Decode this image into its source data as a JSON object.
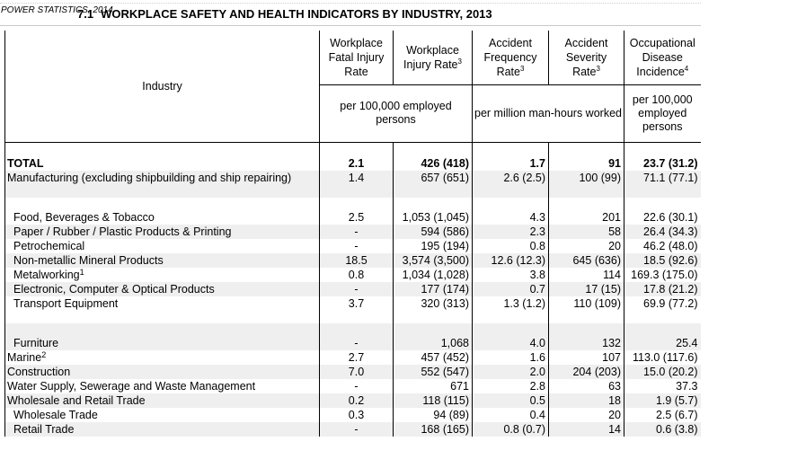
{
  "running_header": "POWER STATISTICS, 2014",
  "title": {
    "number": "7.1",
    "text": "WORKPLACE SAFETY AND HEALTH INDICATORS BY INDUSTRY, 2013"
  },
  "columns": {
    "industry": "Industry",
    "fatal": "Workplace Fatal Injury Rate",
    "injury": "Workplace Injury Rate",
    "injury_sup": "3",
    "afr": "Accident Frequency Rate",
    "afr_sup": "3",
    "asr": "Accident Severity Rate",
    "asr_sup": "3",
    "odi": "Occupational Disease Incidence",
    "odi_sup": "4"
  },
  "units": {
    "per_100k": "per 100,000 employed persons",
    "per_million": "per million man-hours worked",
    "per_100k_odi": "per 100,000 employed persons"
  },
  "rows": [
    {
      "label": "TOTAL",
      "fn": "",
      "fatal": "2.1",
      "injury": "426 (418)",
      "afr": "1.7",
      "asr": "91",
      "odi": "23.7 (31.2)"
    },
    {
      "label": "Manufacturing (excluding shipbuilding and ship repairing)",
      "fn": "",
      "fatal": "1.4",
      "injury": "657 (651)",
      "afr": "2.6 (2.5)",
      "asr": "100 (99)",
      "odi": "71.1 (77.1)"
    },
    {
      "label": "Food, Beverages & Tobacco",
      "fn": "",
      "fatal": "2.5",
      "injury": "1,053 (1,045)",
      "afr": "4.3",
      "asr": "201",
      "odi": "22.6 (30.1)"
    },
    {
      "label": "Paper / Rubber / Plastic Products & Printing",
      "fn": "",
      "fatal": "-",
      "injury": "594 (586)",
      "afr": "2.3",
      "asr": "58",
      "odi": "26.4 (34.3)"
    },
    {
      "label": "Petrochemical",
      "fn": "",
      "fatal": "-",
      "injury": "195 (194)",
      "afr": "0.8",
      "asr": "20",
      "odi": "46.2 (48.0)"
    },
    {
      "label": "Non-metallic Mineral Products",
      "fn": "",
      "fatal": "18.5",
      "injury": "3,574 (3,500)",
      "afr": "12.6 (12.3)",
      "asr": "645 (636)",
      "odi": "18.5 (92.6)"
    },
    {
      "label": "Metalworking",
      "fn": "1",
      "fatal": "0.8",
      "injury": "1,034 (1,028)",
      "afr": "3.8",
      "asr": "114",
      "odi": "169.3 (175.0)"
    },
    {
      "label": "Electronic, Computer & Optical Products",
      "fn": "",
      "fatal": "-",
      "injury": "177 (174)",
      "afr": "0.7",
      "asr": "17 (15)",
      "odi": "17.8 (21.2)"
    },
    {
      "label": "Transport Equipment",
      "fn": "",
      "fatal": "3.7",
      "injury": "320 (313)",
      "afr": "1.3 (1.2)",
      "asr": "110 (109)",
      "odi": "69.9 (77.2)"
    },
    {
      "label": "Furniture",
      "fn": "",
      "fatal": "-",
      "injury": "1,068",
      "afr": "4.0",
      "asr": "132",
      "odi": "25.4"
    },
    {
      "label": "Marine",
      "fn": "2",
      "fatal": "2.7",
      "injury": "457 (452)",
      "afr": "1.6",
      "asr": "107",
      "odi": "113.0 (117.6)"
    },
    {
      "label": "Construction",
      "fn": "",
      "fatal": "7.0",
      "injury": "552 (547)",
      "afr": "2.0",
      "asr": "204 (203)",
      "odi": "15.0 (20.2)"
    },
    {
      "label": "Water Supply, Sewerage and Waste Management",
      "fn": "",
      "fatal": "-",
      "injury": "671",
      "afr": "2.8",
      "asr": "63",
      "odi": "37.3"
    },
    {
      "label": "Wholesale and Retail Trade",
      "fn": "",
      "fatal": "0.2",
      "injury": "118 (115)",
      "afr": "0.5",
      "asr": "18",
      "odi": "1.9 (5.7)"
    },
    {
      "label": "Wholesale Trade",
      "fn": "",
      "fatal": "0.3",
      "injury": "94 (89)",
      "afr": "0.4",
      "asr": "20",
      "odi": "2.5 (6.7)"
    },
    {
      "label": "Retail Trade",
      "fn": "",
      "fatal": "-",
      "injury": "168 (165)",
      "afr": "0.8 (0.7)",
      "asr": "14",
      "odi": "0.6 (3.8)"
    }
  ]
}
